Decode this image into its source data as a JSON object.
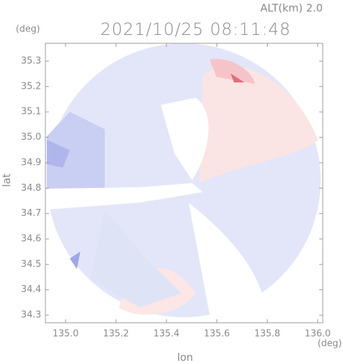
{
  "chart_data": {
    "type": "radar-field",
    "header": "ALT(km) 2.0",
    "title": "2021/10/25 08:11:48",
    "y_unit": "(deg)",
    "x_unit": "(deg)",
    "ylabel": "lat",
    "xlabel": "lon",
    "xlim": [
      134.92,
      136.02
    ],
    "ylim": [
      34.27,
      35.37
    ],
    "xticks": [
      {
        "value": 135,
        "label": "135.0"
      },
      135.2,
      135.4,
      135.6,
      135.8,
      {
        "value": 136,
        "label": "136.0"
      }
    ],
    "yticks": [
      34.3,
      34.4,
      34.5,
      34.6,
      34.7,
      34.8,
      34.9,
      {
        "value": 35,
        "label": "35.0"
      },
      35.1,
      35.2,
      35.3
    ]
  }
}
